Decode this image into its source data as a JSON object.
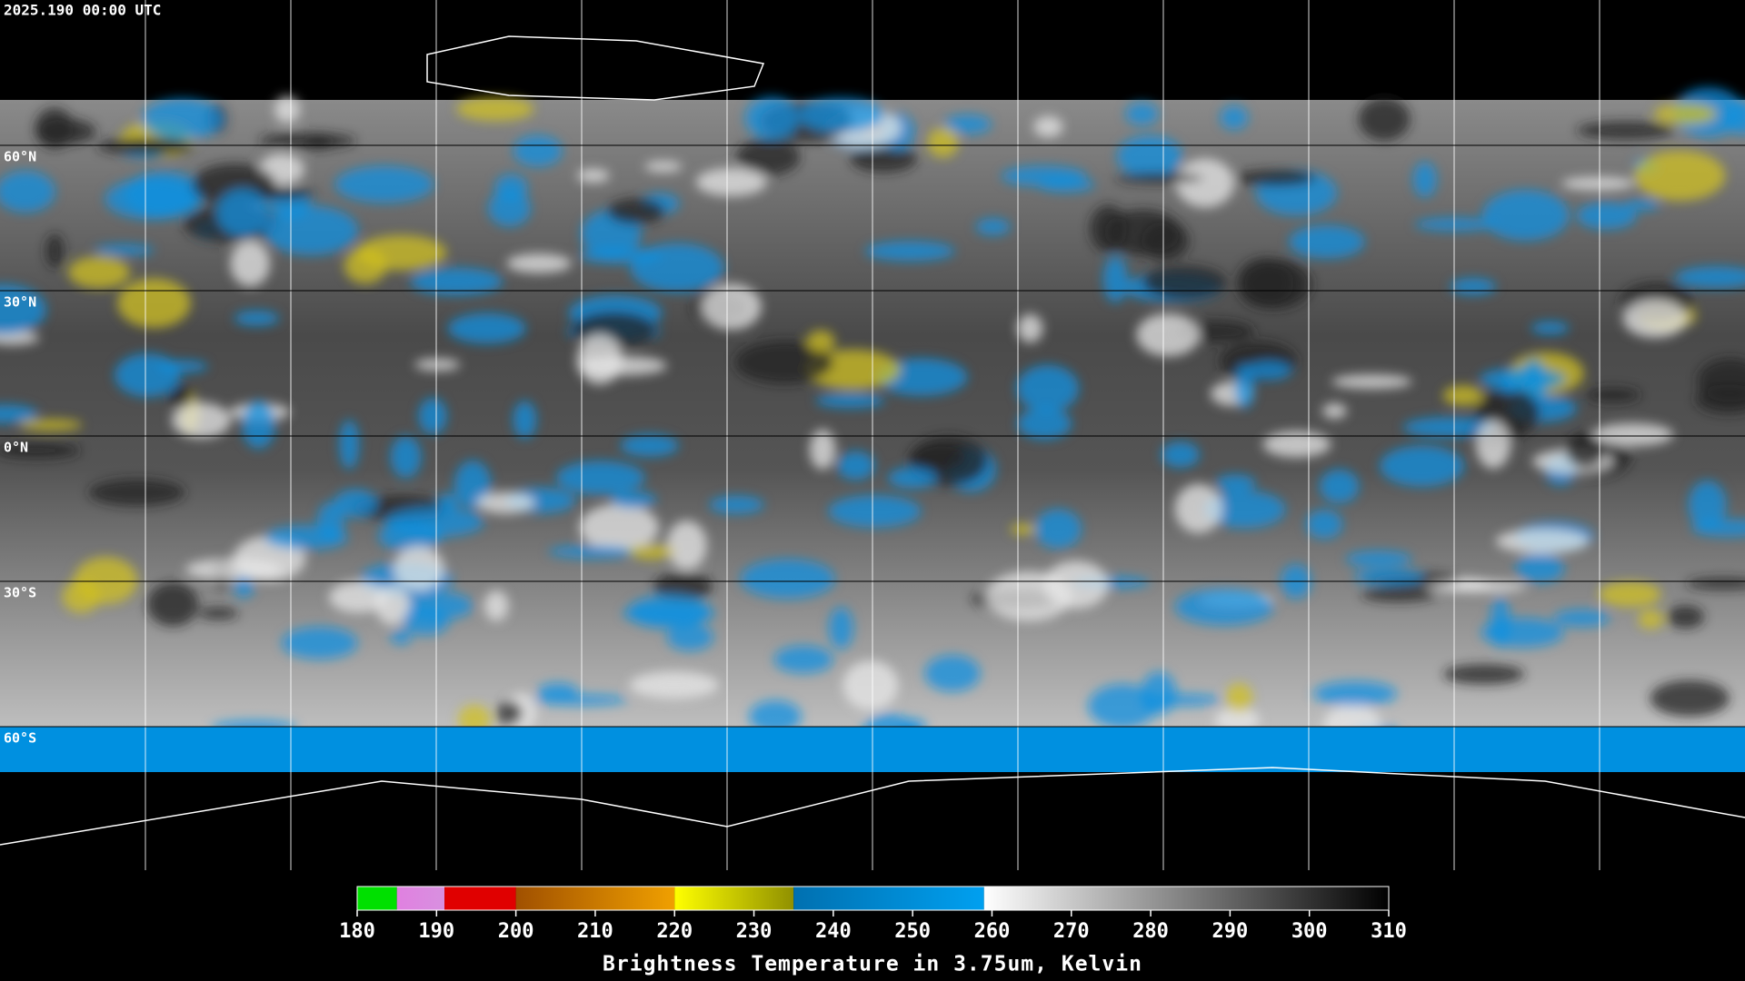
{
  "timestamp": "2025.190 00:00 UTC",
  "lat_labels": [
    "60°N",
    "30°N",
    "0°N",
    "30°S",
    "60°S"
  ],
  "colorbar": {
    "title": "Brightness Temperature in 3.75um, Kelvin",
    "ticks": [
      180,
      190,
      200,
      210,
      220,
      230,
      240,
      250,
      260,
      270,
      280,
      290,
      300,
      310
    ],
    "segments": [
      {
        "from": 180,
        "to": 185,
        "colors": [
          "#00e000",
          "#00e000"
        ]
      },
      {
        "from": 185,
        "to": 191,
        "colors": [
          "#e080e0",
          "#d890e0"
        ]
      },
      {
        "from": 191,
        "to": 200,
        "colors": [
          "#e00000",
          "#e00000"
        ]
      },
      {
        "from": 200,
        "to": 220,
        "colors": [
          "#a05000",
          "#f0a000"
        ]
      },
      {
        "from": 220,
        "to": 235,
        "colors": [
          "#ffff00",
          "#909000"
        ]
      },
      {
        "from": 235,
        "to": 259,
        "colors": [
          "#0070b0",
          "#00a0f0"
        ]
      },
      {
        "from": 259,
        "to": 310,
        "colors": [
          "#ffffff",
          "#000000"
        ]
      }
    ]
  }
}
